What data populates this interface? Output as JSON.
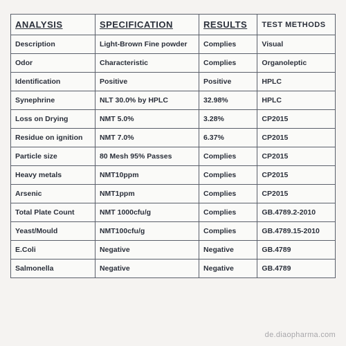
{
  "table": {
    "headers": {
      "analysis": "ANALYSIS",
      "specification": "SPECIFICATION",
      "results": "RESULTS",
      "methods": "TEST METHODS"
    },
    "rows": [
      {
        "analysis": "Description",
        "spec": "Light-Brown Fine powder",
        "result": "Complies",
        "method": "Visual"
      },
      {
        "analysis": "Odor",
        "spec": "Characteristic",
        "result": "Complies",
        "method": "Organoleptic"
      },
      {
        "analysis": "Identification",
        "spec": "Positive",
        "result": "Positive",
        "method": "HPLC"
      },
      {
        "analysis": "Synephrine",
        "spec": "NLT 30.0% by HPLC",
        "result": "32.98%",
        "method": "HPLC"
      },
      {
        "analysis": "Loss on Drying",
        "spec": "NMT 5.0%",
        "result": "3.28%",
        "method": "CP2015"
      },
      {
        "analysis": "Residue on ignition",
        "spec": "NMT 7.0%",
        "result": "6.37%",
        "method": "CP2015"
      },
      {
        "analysis": "Particle size",
        "spec": "80 Mesh 95% Passes",
        "result": "Complies",
        "method": "CP2015"
      },
      {
        "analysis": "Heavy metals",
        "spec": "NMT10ppm",
        "result": "Complies",
        "method": "CP2015"
      },
      {
        "analysis": "Arsenic",
        "spec": "NMT1ppm",
        "result": "Complies",
        "method": "CP2015"
      },
      {
        "analysis": "Total Plate Count",
        "spec": "NMT 1000cfu/g",
        "result": "Complies",
        "method": "GB.4789.2-2010"
      },
      {
        "analysis": "Yeast/Mould",
        "spec": "NMT100cfu/g",
        "result": "Complies",
        "method": "GB.4789.15-2010"
      },
      {
        "analysis": "E.Coli",
        "spec": "Negative",
        "result": "Negative",
        "method": "GB.4789"
      },
      {
        "analysis": "Salmonella",
        "spec": "Negative",
        "result": "Negative",
        "method": "GB.4789"
      }
    ]
  },
  "watermark": "de.diaopharma.com"
}
